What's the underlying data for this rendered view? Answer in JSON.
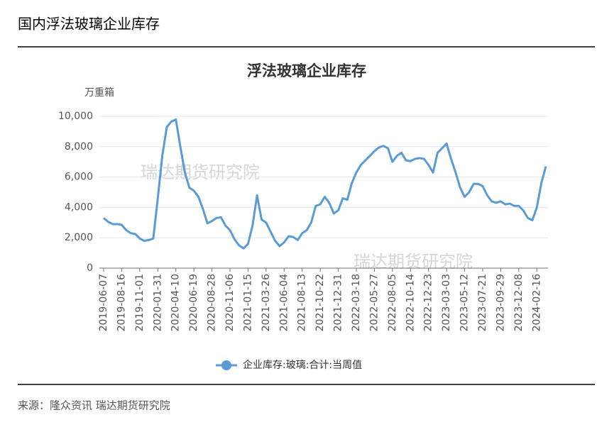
{
  "header": {
    "title": "国内浮法玻璃企业库存"
  },
  "chart_data": {
    "type": "line",
    "title": "浮法玻璃企业库存",
    "y_label": "万重箱",
    "categories": [
      "2019-06-07",
      null,
      null,
      null,
      "2019-08-16",
      null,
      null,
      null,
      "2019-11-01",
      null,
      null,
      null,
      "2020-01-31",
      null,
      null,
      null,
      "2020-04-10",
      null,
      null,
      null,
      "2020-06-19",
      null,
      null,
      null,
      "2020-08-28",
      null,
      null,
      null,
      "2020-11-06",
      null,
      null,
      null,
      "2021-01-15",
      null,
      null,
      null,
      "2021-03-26",
      null,
      null,
      null,
      "2021-06-04",
      null,
      null,
      null,
      "2021-08-13",
      null,
      null,
      null,
      "2021-10-22",
      null,
      null,
      null,
      "2021-12-31",
      null,
      null,
      null,
      "2022-03-18",
      null,
      null,
      null,
      "2022-05-27",
      null,
      null,
      null,
      "2022-08-05",
      null,
      null,
      null,
      "2022-10-14",
      null,
      null,
      null,
      "2022-12-23",
      null,
      null,
      null,
      "2023-03-03",
      null,
      null,
      null,
      "2023-05-12",
      null,
      null,
      null,
      "2023-07-21",
      null,
      null,
      null,
      "2023-09-29",
      null,
      null,
      null,
      "2023-12-08",
      null,
      null,
      null,
      "2024-02-16",
      null,
      null
    ],
    "series": [
      {
        "name": "企业库存:玻璃:合计:当周值",
        "color": "#5b9bd5",
        "values": [
          3300,
          3050,
          2900,
          2900,
          2850,
          2500,
          2300,
          2250,
          1950,
          1800,
          1850,
          1950,
          4600,
          7400,
          9300,
          9650,
          9800,
          8000,
          6300,
          5300,
          5100,
          4700,
          3900,
          2950,
          3100,
          3300,
          3350,
          2800,
          2500,
          1900,
          1500,
          1300,
          1600,
          2800,
          4800,
          3200,
          3000,
          2400,
          1800,
          1450,
          1700,
          2100,
          2050,
          1850,
          2300,
          2500,
          3000,
          4100,
          4200,
          4700,
          4300,
          3600,
          3800,
          4600,
          4500,
          5600,
          6300,
          6800,
          7100,
          7400,
          7700,
          7950,
          8050,
          7900,
          7000,
          7400,
          7600,
          7100,
          7050,
          7200,
          7250,
          7200,
          6800,
          6300,
          7600,
          7900,
          8200,
          7200,
          6300,
          5300,
          4700,
          5000,
          5550,
          5550,
          5400,
          4800,
          4400,
          4300,
          4400,
          4200,
          4250,
          4100,
          4100,
          3800,
          3300,
          3150,
          4000,
          5600,
          6700
        ]
      }
    ],
    "ylim": [
      0,
      10000
    ],
    "yticks": [
      0,
      {
        "value": 2000,
        "label": "2,000"
      },
      {
        "value": 4000,
        "label": "4,000"
      },
      {
        "value": 6000,
        "label": "6,000"
      },
      {
        "value": 8000,
        "label": "8,000"
      },
      {
        "value": 10000,
        "label": "10,000"
      }
    ],
    "grid": true
  },
  "watermarks": [
    "瑞达期货研究院",
    "瑞达期货研究院"
  ],
  "source": "来源：隆众资讯 瑞达期货研究院"
}
